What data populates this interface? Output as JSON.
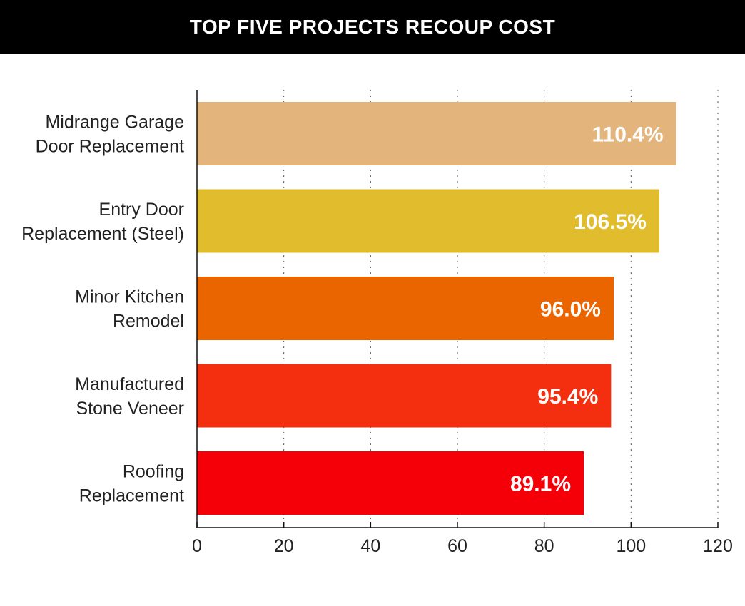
{
  "header": {
    "title": "TOP FIVE PROJECTS RECOUP COST"
  },
  "chart_data": {
    "type": "bar",
    "orientation": "horizontal",
    "title": "TOP FIVE PROJECTS RECOUP COST",
    "categories": [
      [
        "Midrange Garage",
        "Door Replacement"
      ],
      [
        "Entry Door",
        "Replacement (Steel)"
      ],
      [
        "Minor Kitchen",
        "Remodel"
      ],
      [
        "Manufactured",
        "Stone Veneer"
      ],
      [
        "Roofing",
        "Replacement"
      ]
    ],
    "values": [
      110.4,
      106.5,
      96.0,
      95.4,
      89.1
    ],
    "value_labels": [
      "110.4%",
      "106.5%",
      "96.0%",
      "95.4%",
      "89.1%"
    ],
    "colors": [
      "#E3B47C",
      "#E1BD2E",
      "#EA6400",
      "#F42F10",
      "#F50008"
    ],
    "xlim": [
      0,
      120
    ],
    "xticks": [
      0,
      20,
      40,
      60,
      80,
      100,
      120
    ],
    "xlabel": "",
    "ylabel": "",
    "grid": "vertical dotted"
  }
}
